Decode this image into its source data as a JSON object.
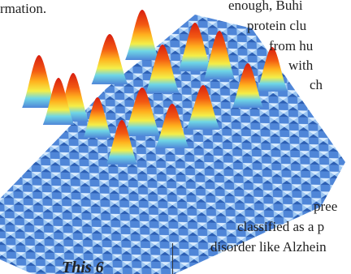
{
  "text_fragments": {
    "top_left": "rmation.",
    "right_lines": [
      "enough, Buhi",
      "protein clu",
      "from hu",
      "with",
      "ch",
      "pree",
      "classified as a p",
      "disorder like Alzhein"
    ],
    "bottom_left": "This 6"
  }
}
